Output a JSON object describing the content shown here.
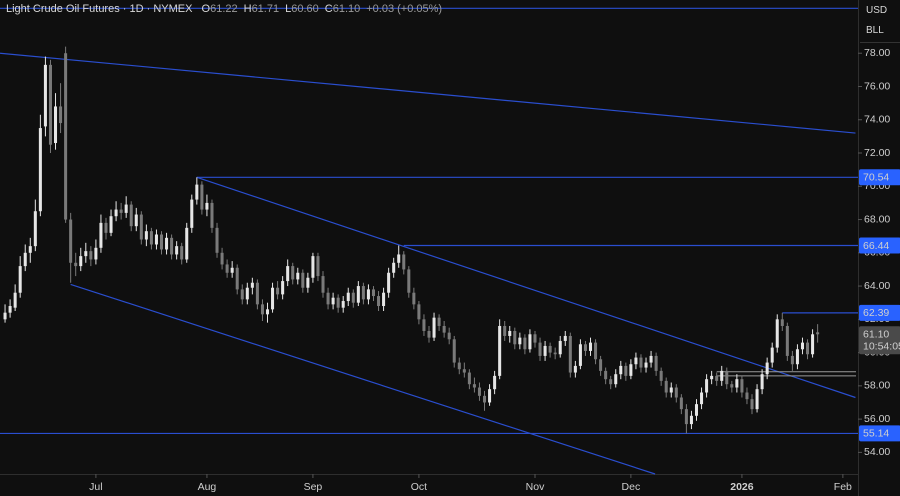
{
  "chart_data": {
    "type": "candlestick",
    "title": "Light Crude Oil Futures · 1D · NYMEX",
    "legend_values": [
      {
        "label": "O",
        "value": "61.22"
      },
      {
        "label": "H",
        "value": "61.71"
      },
      {
        "label": "L",
        "value": "60.60"
      },
      {
        "label": "C",
        "value": "61.10"
      },
      {
        "label": "",
        "value": "+0.03 (+0.05%)"
      }
    ],
    "currency": "USD",
    "unit": "BLL",
    "xlim": [
      -1,
      169
    ],
    "xticks": [
      {
        "value": 18,
        "label": "Jul"
      },
      {
        "value": 40,
        "label": "Aug"
      },
      {
        "value": 61,
        "label": "Sep"
      },
      {
        "value": 82,
        "label": "Oct"
      },
      {
        "value": 105,
        "label": "Nov"
      },
      {
        "value": 124,
        "label": "Dec"
      },
      {
        "value": 146,
        "label": "2026"
      },
      {
        "value": 166,
        "label": "Feb"
      }
    ],
    "ylim": [
      52.7,
      81.2
    ],
    "yticks": [
      {
        "value": 54,
        "label": "54.00"
      },
      {
        "value": 56,
        "label": "56.00"
      },
      {
        "value": 58,
        "label": "58.00"
      },
      {
        "value": 60,
        "label": "60.00"
      },
      {
        "value": 62,
        "label": "62.00"
      },
      {
        "value": 64,
        "label": "64.00"
      },
      {
        "value": 66,
        "label": "66.00"
      },
      {
        "value": 68,
        "label": "68.00"
      },
      {
        "value": 70,
        "label": "70.00"
      },
      {
        "value": 72,
        "label": "72.00"
      },
      {
        "value": 74,
        "label": "74.00"
      },
      {
        "value": 76,
        "label": "76.00"
      },
      {
        "value": 78,
        "label": "78.00"
      }
    ],
    "up_color": "#e6e6e6",
    "down_color": "#7a7a7a",
    "line_color": "#2a4ecf",
    "ohlc": [
      [
        62.0,
        62.9,
        61.8,
        62.4
      ],
      [
        62.4,
        63.2,
        62.1,
        62.8
      ],
      [
        62.7,
        64.1,
        62.5,
        63.6
      ],
      [
        63.6,
        65.8,
        63.3,
        65.2
      ],
      [
        65.2,
        66.5,
        64.9,
        66.0
      ],
      [
        66.0,
        66.9,
        65.4,
        66.4
      ],
      [
        66.4,
        69.2,
        66.1,
        68.5
      ],
      [
        68.5,
        74.3,
        68.2,
        73.5
      ],
      [
        73.6,
        77.8,
        73.0,
        77.3
      ],
      [
        77.3,
        77.6,
        72.0,
        72.5
      ],
      [
        72.6,
        75.6,
        72.2,
        74.8
      ],
      [
        74.8,
        76.2,
        73.2,
        73.8
      ],
      [
        78.0,
        78.4,
        67.8,
        68.0
      ],
      [
        68.0,
        68.4,
        64.2,
        65.4
      ],
      [
        65.4,
        66.0,
        64.6,
        65.2
      ],
      [
        65.2,
        66.3,
        64.9,
        65.8
      ],
      [
        65.8,
        66.6,
        65.4,
        66.1
      ],
      [
        66.1,
        66.4,
        65.2,
        65.6
      ],
      [
        65.6,
        66.8,
        65.3,
        66.3
      ],
      [
        66.3,
        68.3,
        66.0,
        67.8
      ],
      [
        67.8,
        68.1,
        66.8,
        67.2
      ],
      [
        67.2,
        68.6,
        67.0,
        68.2
      ],
      [
        68.2,
        69.1,
        67.9,
        68.6
      ],
      [
        68.6,
        69.0,
        68.0,
        68.4
      ],
      [
        68.4,
        69.4,
        68.1,
        68.9
      ],
      [
        68.9,
        69.1,
        67.3,
        67.6
      ],
      [
        67.6,
        68.7,
        67.3,
        68.3
      ],
      [
        68.3,
        68.5,
        66.5,
        66.8
      ],
      [
        66.8,
        67.7,
        66.4,
        67.3
      ],
      [
        67.3,
        67.5,
        66.2,
        66.5
      ],
      [
        66.5,
        67.4,
        66.2,
        67.1
      ],
      [
        67.1,
        67.3,
        65.9,
        66.2
      ],
      [
        66.2,
        67.2,
        65.9,
        66.9
      ],
      [
        66.9,
        67.1,
        65.6,
        65.9
      ],
      [
        65.9,
        66.7,
        65.6,
        66.4
      ],
      [
        66.4,
        66.6,
        65.3,
        65.6
      ],
      [
        65.6,
        67.8,
        65.4,
        67.5
      ],
      [
        67.5,
        69.5,
        67.2,
        69.2
      ],
      [
        69.2,
        70.54,
        68.9,
        70.1
      ],
      [
        70.1,
        70.3,
        68.3,
        68.6
      ],
      [
        68.6,
        69.5,
        68.2,
        69.0
      ],
      [
        69.0,
        69.2,
        67.2,
        67.5
      ],
      [
        67.5,
        67.8,
        65.7,
        66.0
      ],
      [
        66.0,
        66.3,
        65.0,
        65.3
      ],
      [
        65.3,
        65.6,
        64.5,
        64.8
      ],
      [
        64.8,
        65.5,
        64.5,
        65.1
      ],
      [
        65.1,
        65.3,
        63.5,
        63.8
      ],
      [
        63.8,
        64.1,
        62.9,
        63.2
      ],
      [
        63.2,
        64.2,
        62.9,
        63.9
      ],
      [
        63.9,
        64.5,
        63.5,
        64.2
      ],
      [
        64.2,
        64.4,
        62.6,
        62.9
      ],
      [
        62.9,
        63.2,
        61.9,
        62.3
      ],
      [
        62.3,
        63.0,
        61.8,
        62.6
      ],
      [
        62.6,
        64.2,
        62.4,
        63.9
      ],
      [
        63.9,
        64.3,
        63.2,
        63.5
      ],
      [
        63.5,
        64.6,
        63.2,
        64.3
      ],
      [
        64.3,
        65.6,
        64.0,
        65.2
      ],
      [
        65.2,
        65.4,
        64.1,
        64.4
      ],
      [
        64.4,
        65.1,
        64.1,
        64.8
      ],
      [
        64.8,
        65.0,
        63.6,
        63.9
      ],
      [
        63.9,
        64.8,
        63.6,
        64.5
      ],
      [
        64.5,
        66.0,
        64.2,
        65.8
      ],
      [
        65.8,
        66.0,
        64.3,
        64.6
      ],
      [
        64.6,
        64.9,
        63.3,
        63.6
      ],
      [
        63.6,
        63.9,
        62.6,
        62.9
      ],
      [
        62.9,
        63.6,
        62.6,
        63.3
      ],
      [
        63.3,
        63.5,
        62.4,
        62.7
      ],
      [
        62.7,
        63.4,
        62.4,
        63.1
      ],
      [
        63.1,
        63.9,
        62.8,
        63.6
      ],
      [
        63.6,
        63.8,
        62.7,
        63.0
      ],
      [
        63.0,
        64.3,
        62.8,
        64.0
      ],
      [
        64.0,
        64.2,
        62.9,
        63.2
      ],
      [
        63.2,
        64.1,
        62.9,
        63.8
      ],
      [
        63.8,
        64.0,
        63.1,
        63.4
      ],
      [
        63.4,
        63.7,
        62.5,
        62.8
      ],
      [
        62.8,
        63.9,
        62.5,
        63.6
      ],
      [
        63.6,
        65.1,
        63.3,
        64.8
      ],
      [
        64.8,
        65.7,
        64.5,
        65.4
      ],
      [
        65.4,
        66.44,
        65.1,
        65.9
      ],
      [
        65.9,
        66.1,
        64.7,
        65.0
      ],
      [
        65.0,
        65.2,
        63.3,
        63.6
      ],
      [
        63.6,
        63.9,
        62.6,
        62.9
      ],
      [
        62.9,
        63.1,
        61.7,
        62.0
      ],
      [
        62.0,
        62.3,
        61.0,
        61.3
      ],
      [
        61.3,
        61.6,
        60.6,
        60.9
      ],
      [
        60.9,
        62.4,
        60.7,
        62.1
      ],
      [
        62.1,
        62.3,
        61.3,
        61.6
      ],
      [
        61.6,
        61.9,
        60.9,
        61.2
      ],
      [
        61.2,
        61.5,
        60.5,
        60.8
      ],
      [
        60.8,
        61.0,
        59.1,
        59.4
      ],
      [
        59.4,
        59.7,
        58.7,
        59.0
      ],
      [
        59.0,
        59.4,
        58.5,
        58.8
      ],
      [
        58.8,
        59.0,
        57.8,
        58.1
      ],
      [
        58.1,
        58.5,
        57.6,
        57.9
      ],
      [
        57.9,
        58.2,
        57.1,
        57.4
      ],
      [
        57.4,
        57.7,
        56.5,
        57.0
      ],
      [
        57.0,
        58.1,
        56.8,
        57.8
      ],
      [
        57.8,
        58.9,
        57.5,
        58.6
      ],
      [
        58.6,
        62.0,
        58.4,
        61.6
      ],
      [
        61.6,
        61.9,
        60.7,
        61.0
      ],
      [
        61.0,
        61.6,
        60.6,
        61.3
      ],
      [
        61.3,
        61.5,
        60.2,
        60.5
      ],
      [
        60.5,
        61.2,
        60.2,
        60.9
      ],
      [
        60.9,
        61.1,
        59.9,
        60.2
      ],
      [
        60.2,
        61.4,
        60.0,
        61.1
      ],
      [
        61.1,
        61.3,
        60.3,
        60.6
      ],
      [
        60.6,
        60.9,
        59.5,
        59.8
      ],
      [
        59.8,
        60.7,
        59.5,
        60.4
      ],
      [
        60.4,
        60.6,
        59.7,
        60.0
      ],
      [
        60.0,
        60.3,
        59.6,
        59.9
      ],
      [
        59.9,
        61.0,
        59.7,
        60.7
      ],
      [
        60.7,
        61.3,
        60.4,
        61.0
      ],
      [
        61.0,
        61.2,
        58.5,
        58.8
      ],
      [
        58.8,
        59.5,
        58.5,
        59.2
      ],
      [
        59.2,
        60.8,
        59.0,
        60.5
      ],
      [
        60.5,
        60.7,
        59.8,
        60.1
      ],
      [
        60.1,
        60.9,
        59.8,
        60.6
      ],
      [
        60.6,
        60.8,
        59.3,
        59.6
      ],
      [
        59.6,
        59.8,
        58.6,
        58.9
      ],
      [
        58.9,
        59.1,
        58.1,
        58.4
      ],
      [
        58.4,
        58.6,
        57.8,
        58.1
      ],
      [
        58.1,
        59.0,
        57.9,
        58.7
      ],
      [
        58.7,
        59.5,
        58.4,
        59.2
      ],
      [
        59.2,
        59.4,
        58.3,
        58.6
      ],
      [
        58.6,
        59.6,
        58.4,
        59.3
      ],
      [
        59.3,
        60.0,
        59.0,
        59.7
      ],
      [
        59.7,
        59.9,
        58.8,
        59.1
      ],
      [
        59.1,
        59.7,
        58.8,
        59.4
      ],
      [
        59.4,
        60.1,
        59.1,
        59.8
      ],
      [
        59.8,
        60.0,
        58.6,
        58.9
      ],
      [
        58.9,
        59.1,
        58.0,
        58.3
      ],
      [
        58.3,
        58.5,
        57.3,
        57.6
      ],
      [
        57.6,
        58.2,
        57.3,
        57.9
      ],
      [
        57.9,
        58.1,
        57.0,
        57.3
      ],
      [
        57.3,
        57.5,
        56.3,
        56.6
      ],
      [
        56.6,
        56.9,
        55.14,
        55.7
      ],
      [
        55.7,
        56.5,
        55.4,
        56.2
      ],
      [
        56.2,
        57.2,
        55.9,
        56.9
      ],
      [
        56.9,
        57.9,
        56.6,
        57.6
      ],
      [
        57.6,
        58.7,
        57.3,
        58.4
      ],
      [
        58.4,
        58.9,
        58.1,
        58.6
      ],
      [
        58.6,
        58.8,
        58.0,
        58.3
      ],
      [
        58.3,
        59.2,
        58.0,
        58.9
      ],
      [
        58.9,
        59.1,
        57.8,
        58.1
      ],
      [
        58.1,
        58.3,
        57.6,
        57.9
      ],
      [
        57.9,
        58.7,
        57.6,
        58.4
      ],
      [
        58.4,
        58.6,
        57.3,
        57.6
      ],
      [
        57.6,
        57.9,
        56.9,
        57.2
      ],
      [
        57.2,
        57.5,
        56.3,
        56.6
      ],
      [
        56.6,
        58.1,
        56.4,
        57.8
      ],
      [
        57.8,
        59.0,
        57.5,
        58.7
      ],
      [
        58.7,
        59.7,
        58.4,
        59.4
      ],
      [
        59.4,
        60.6,
        59.1,
        60.3
      ],
      [
        60.3,
        62.3,
        60.0,
        62.0
      ],
      [
        62.0,
        62.39,
        61.3,
        61.6
      ],
      [
        61.6,
        61.8,
        59.5,
        59.8
      ],
      [
        59.8,
        60.1,
        58.9,
        59.3
      ],
      [
        59.3,
        60.5,
        59.0,
        60.2
      ],
      [
        60.2,
        60.9,
        59.9,
        60.6
      ],
      [
        60.6,
        60.8,
        59.6,
        59.9
      ],
      [
        59.9,
        61.4,
        59.7,
        61.1
      ],
      [
        61.22,
        61.71,
        60.6,
        61.1
      ]
    ],
    "levels": [
      {
        "value": 80.7,
        "from": -1
      },
      {
        "value": 70.54,
        "label": "70.54",
        "from": 38
      },
      {
        "value": 66.44,
        "label": "66.44",
        "from": 79
      },
      {
        "value": 62.39,
        "label": "62.39",
        "from": 154
      },
      {
        "value": 55.14,
        "label": "55.14",
        "from": -1
      }
    ],
    "trendlines": [
      {
        "start": [
          -1,
          78.0
        ],
        "end": [
          168.5,
          73.2
        ]
      },
      {
        "start": [
          38,
          70.54
        ],
        "end": [
          168.5,
          57.3
        ]
      },
      {
        "start": [
          13,
          64.1
        ],
        "end": [
          128.8,
          52.7
        ]
      }
    ],
    "zone": {
      "from": 141,
      "values": [
        58.6,
        58.85
      ]
    },
    "last_price": {
      "value": 61.1,
      "label": "61.10",
      "countdown": "10:54:05"
    }
  }
}
